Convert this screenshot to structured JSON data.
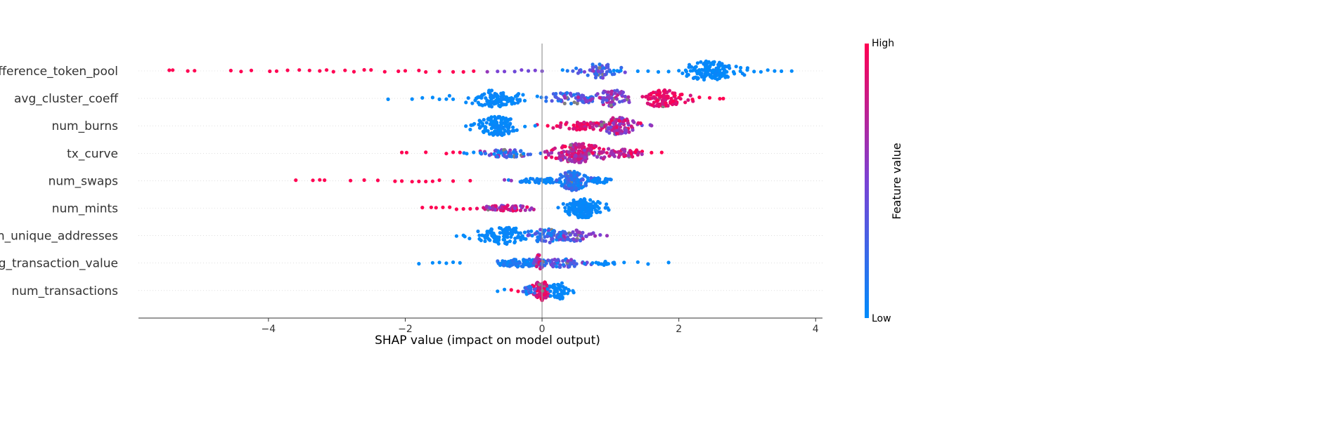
{
  "chart_data": {
    "type": "scatter",
    "subtype": "shap-beeswarm",
    "xlabel": "SHAP value (impact on model output)",
    "xlim": [
      -5.9,
      4.1
    ],
    "xticks": [
      -4,
      -2,
      0,
      2,
      4
    ],
    "xtick_labels": [
      "−4",
      "−2",
      "0",
      "2",
      "4"
    ],
    "zero_line": 0,
    "features": [
      {
        "name": "difference_token_pool",
        "points": [
          [
            -5.45,
            1
          ],
          [
            -5.4,
            1
          ],
          [
            -5.18,
            1
          ],
          [
            -5.08,
            1
          ],
          [
            -4.55,
            1
          ],
          [
            -4.4,
            1
          ],
          [
            -4.25,
            1
          ],
          [
            -3.98,
            1
          ],
          [
            -3.88,
            1
          ],
          [
            -3.72,
            1
          ],
          [
            -3.55,
            1
          ],
          [
            -3.4,
            1
          ],
          [
            -3.25,
            1
          ],
          [
            -3.15,
            1
          ],
          [
            -3.05,
            1
          ],
          [
            -2.88,
            1
          ],
          [
            -2.75,
            1
          ],
          [
            -2.6,
            1
          ],
          [
            -2.5,
            1
          ],
          [
            -2.3,
            1
          ],
          [
            -2.1,
            1
          ],
          [
            -2.0,
            1
          ],
          [
            -1.8,
            1
          ],
          [
            -1.7,
            1
          ],
          [
            -1.5,
            1
          ],
          [
            -1.3,
            1
          ],
          [
            -1.15,
            1
          ],
          [
            -1.0,
            1
          ],
          [
            -0.8,
            0.6
          ],
          [
            -0.65,
            0.5
          ],
          [
            -0.55,
            0.5
          ],
          [
            -0.4,
            0.45
          ],
          [
            -0.3,
            0.5
          ],
          [
            -0.2,
            0.45
          ],
          [
            -0.1,
            0.5
          ],
          [
            0.0,
            0.5
          ],
          [
            0.3,
            0.0
          ],
          [
            0.45,
            0.3
          ],
          [
            0.55,
            0.4
          ],
          [
            0.62,
            0.5
          ],
          [
            0.7,
            0.4
          ],
          [
            0.75,
            0.6
          ],
          [
            0.82,
            0.5
          ],
          [
            0.88,
            0.4
          ],
          [
            0.95,
            0.3
          ],
          [
            1.0,
            0.1
          ],
          [
            1.05,
            0.0
          ],
          [
            1.1,
            0.0
          ],
          [
            1.15,
            0.0
          ],
          [
            1.4,
            0.0
          ],
          [
            1.55,
            0.0
          ],
          [
            1.7,
            0.0
          ],
          [
            1.85,
            0.0
          ],
          [
            2.0,
            0.0
          ],
          [
            2.1,
            0.0
          ],
          [
            2.2,
            0.0
          ],
          [
            2.3,
            0.0
          ],
          [
            2.4,
            0.0
          ],
          [
            2.5,
            0.0
          ],
          [
            2.6,
            0.0
          ],
          [
            2.7,
            0.0
          ],
          [
            2.8,
            0.0
          ],
          [
            2.9,
            0.0
          ],
          [
            3.0,
            0.0
          ],
          [
            3.1,
            0.0
          ],
          [
            3.2,
            0.0
          ],
          [
            3.3,
            0.0
          ],
          [
            3.4,
            0.0
          ],
          [
            3.5,
            0.0
          ],
          [
            3.65,
            0.0
          ]
        ],
        "dense": [
          {
            "center": 2.45,
            "spread": 0.35,
            "count": 130,
            "color_min": 0.0,
            "color_max": 0.05,
            "height": 14
          },
          {
            "center": 0.85,
            "spread": 0.25,
            "count": 45,
            "color_min": 0.1,
            "color_max": 0.55,
            "height": 11
          }
        ]
      },
      {
        "name": "avg_cluster_coeff",
        "points": [
          [
            -2.25,
            0.0
          ],
          [
            -1.9,
            0.0
          ],
          [
            -1.75,
            0.0
          ],
          [
            -1.6,
            0.0
          ],
          [
            -1.5,
            0.0
          ],
          [
            -1.4,
            0.0
          ],
          [
            -1.3,
            0.0
          ],
          [
            2.2,
            1
          ],
          [
            2.3,
            1
          ],
          [
            2.45,
            1
          ],
          [
            2.6,
            1
          ],
          [
            2.65,
            1
          ]
        ],
        "dense": [
          {
            "center": -0.7,
            "spread": 0.35,
            "count": 110,
            "color_min": 0.0,
            "color_max": 0.05,
            "height": 12
          },
          {
            "center": 0.4,
            "spread": 0.4,
            "count": 60,
            "color_min": 0.05,
            "color_max": 0.6,
            "height": 8
          },
          {
            "center": 1.0,
            "spread": 0.3,
            "count": 70,
            "color_min": 0.3,
            "color_max": 0.8,
            "height": 12
          },
          {
            "center": 1.75,
            "spread": 0.3,
            "count": 110,
            "color_min": 0.8,
            "color_max": 1.0,
            "height": 12
          }
        ]
      },
      {
        "name": "num_burns",
        "points": [
          [
            -0.1,
            0.0
          ],
          [
            -0.25,
            0.0
          ],
          [
            1.6,
            0.6
          ]
        ],
        "dense": [
          {
            "center": -0.65,
            "spread": 0.25,
            "count": 120,
            "color_min": 0.0,
            "color_max": 0.05,
            "height": 14
          },
          {
            "center": 0.55,
            "spread": 0.35,
            "count": 60,
            "color_min": 0.75,
            "color_max": 1.0,
            "height": 6
          },
          {
            "center": 1.1,
            "spread": 0.25,
            "count": 110,
            "color_min": 0.4,
            "color_max": 1.0,
            "height": 12
          }
        ]
      },
      {
        "name": "tx_curve",
        "points": [
          [
            -2.05,
            1
          ],
          [
            -1.98,
            1
          ],
          [
            -1.7,
            1
          ],
          [
            -1.4,
            1
          ],
          [
            -1.3,
            1
          ],
          [
            -1.2,
            1
          ],
          [
            -1.1,
            0.0
          ],
          [
            -1.0,
            0.0
          ],
          [
            -0.9,
            0.0
          ],
          [
            -0.7,
            0.0
          ],
          [
            1.6,
            1
          ],
          [
            1.75,
            1
          ]
        ],
        "dense": [
          {
            "center": -0.5,
            "spread": 0.35,
            "count": 60,
            "color_min": 0.0,
            "color_max": 0.7,
            "height": 6
          },
          {
            "center": 0.55,
            "spread": 0.35,
            "count": 170,
            "color_min": 0.55,
            "color_max": 1.0,
            "height": 14
          },
          {
            "center": 1.2,
            "spread": 0.25,
            "count": 50,
            "color_min": 0.6,
            "color_max": 1.0,
            "height": 6
          }
        ]
      },
      {
        "name": "num_swaps",
        "points": [
          [
            -3.6,
            1
          ],
          [
            -3.35,
            1
          ],
          [
            -3.25,
            1
          ],
          [
            -3.18,
            1
          ],
          [
            -2.8,
            1
          ],
          [
            -2.6,
            1
          ],
          [
            -2.4,
            1
          ],
          [
            -2.15,
            1
          ],
          [
            -2.05,
            1
          ],
          [
            -1.9,
            1
          ],
          [
            -1.8,
            1
          ],
          [
            -1.7,
            1
          ],
          [
            -1.6,
            1
          ],
          [
            -1.5,
            1
          ],
          [
            -1.3,
            1
          ],
          [
            -1.05,
            1
          ],
          [
            -0.55,
            0.6
          ],
          [
            -0.45,
            0.6
          ]
        ],
        "dense": [
          {
            "center": -0.05,
            "spread": 0.3,
            "count": 50,
            "color_min": 0.0,
            "color_max": 0.1,
            "height": 4
          },
          {
            "center": 0.45,
            "spread": 0.2,
            "count": 130,
            "color_min": 0.0,
            "color_max": 0.35,
            "height": 14
          },
          {
            "center": 0.85,
            "spread": 0.15,
            "count": 25,
            "color_min": 0.0,
            "color_max": 0.1,
            "height": 4
          }
        ]
      },
      {
        "name": "num_mints",
        "points": [
          [
            -1.75,
            1
          ],
          [
            -1.62,
            1
          ],
          [
            -1.55,
            1
          ],
          [
            -1.45,
            1
          ],
          [
            -1.35,
            1
          ],
          [
            -1.25,
            1
          ],
          [
            -1.15,
            1
          ],
          [
            -1.05,
            1
          ]
        ],
        "dense": [
          {
            "center": -0.5,
            "spread": 0.35,
            "count": 80,
            "color_min": 0.45,
            "color_max": 1.0,
            "height": 4
          },
          {
            "center": 0.6,
            "spread": 0.25,
            "count": 150,
            "color_min": 0.0,
            "color_max": 0.05,
            "height": 14
          }
        ]
      },
      {
        "name": "n_unique_addresses",
        "points": [
          [
            -1.25,
            0.0
          ],
          [
            -1.15,
            0.0
          ],
          [
            0.85,
            0.5
          ],
          [
            0.95,
            0.6
          ]
        ],
        "dense": [
          {
            "center": -0.55,
            "spread": 0.35,
            "count": 110,
            "color_min": 0.0,
            "color_max": 0.05,
            "height": 12
          },
          {
            "center": 0.1,
            "spread": 0.3,
            "count": 80,
            "color_min": 0.0,
            "color_max": 0.5,
            "height": 10
          },
          {
            "center": 0.5,
            "spread": 0.2,
            "count": 40,
            "color_min": 0.2,
            "color_max": 0.7,
            "height": 8
          }
        ]
      },
      {
        "name": "avg_transaction_value",
        "points": [
          [
            -1.8,
            0.0
          ],
          [
            -1.6,
            0.0
          ],
          [
            -1.5,
            0.0
          ],
          [
            -1.4,
            0.0
          ],
          [
            -1.3,
            0.0
          ],
          [
            -1.2,
            0.0
          ],
          [
            1.2,
            0.0
          ],
          [
            1.4,
            0.0
          ],
          [
            1.55,
            0.0
          ],
          [
            1.85,
            0.0
          ]
        ],
        "dense": [
          {
            "center": -0.25,
            "spread": 0.35,
            "count": 90,
            "color_min": 0.0,
            "color_max": 0.2,
            "height": 6
          },
          {
            "center": -0.05,
            "spread": 0.05,
            "count": 25,
            "color_min": 0.5,
            "color_max": 1.0,
            "height": 12
          },
          {
            "center": 0.3,
            "spread": 0.35,
            "count": 60,
            "color_min": 0.0,
            "color_max": 0.6,
            "height": 6
          },
          {
            "center": 0.9,
            "spread": 0.2,
            "count": 15,
            "color_min": 0.0,
            "color_max": 0.05,
            "height": 3
          }
        ]
      },
      {
        "name": "num_transactions",
        "points": [
          [
            -0.65,
            0.0
          ],
          [
            -0.55,
            0.0
          ],
          [
            -0.45,
            1
          ],
          [
            -0.35,
            1
          ],
          [
            0.45,
            0.0
          ]
        ],
        "dense": [
          {
            "center": 0.0,
            "spread": 0.12,
            "count": 90,
            "color_min": 0.75,
            "color_max": 1.0,
            "height": 14
          },
          {
            "center": 0.25,
            "spread": 0.15,
            "count": 50,
            "color_min": 0.0,
            "color_max": 0.05,
            "height": 12
          },
          {
            "center": -0.2,
            "spread": 0.1,
            "count": 20,
            "color_min": 0.0,
            "color_max": 0.4,
            "height": 6
          }
        ]
      }
    ],
    "missing_color": "#808080",
    "colormap": {
      "low": "#008bfb",
      "mid": "#7a42d4",
      "high": "#ff0052"
    },
    "colorbar": {
      "high_label": "High",
      "low_label": "Low",
      "title": "Feature value"
    }
  }
}
